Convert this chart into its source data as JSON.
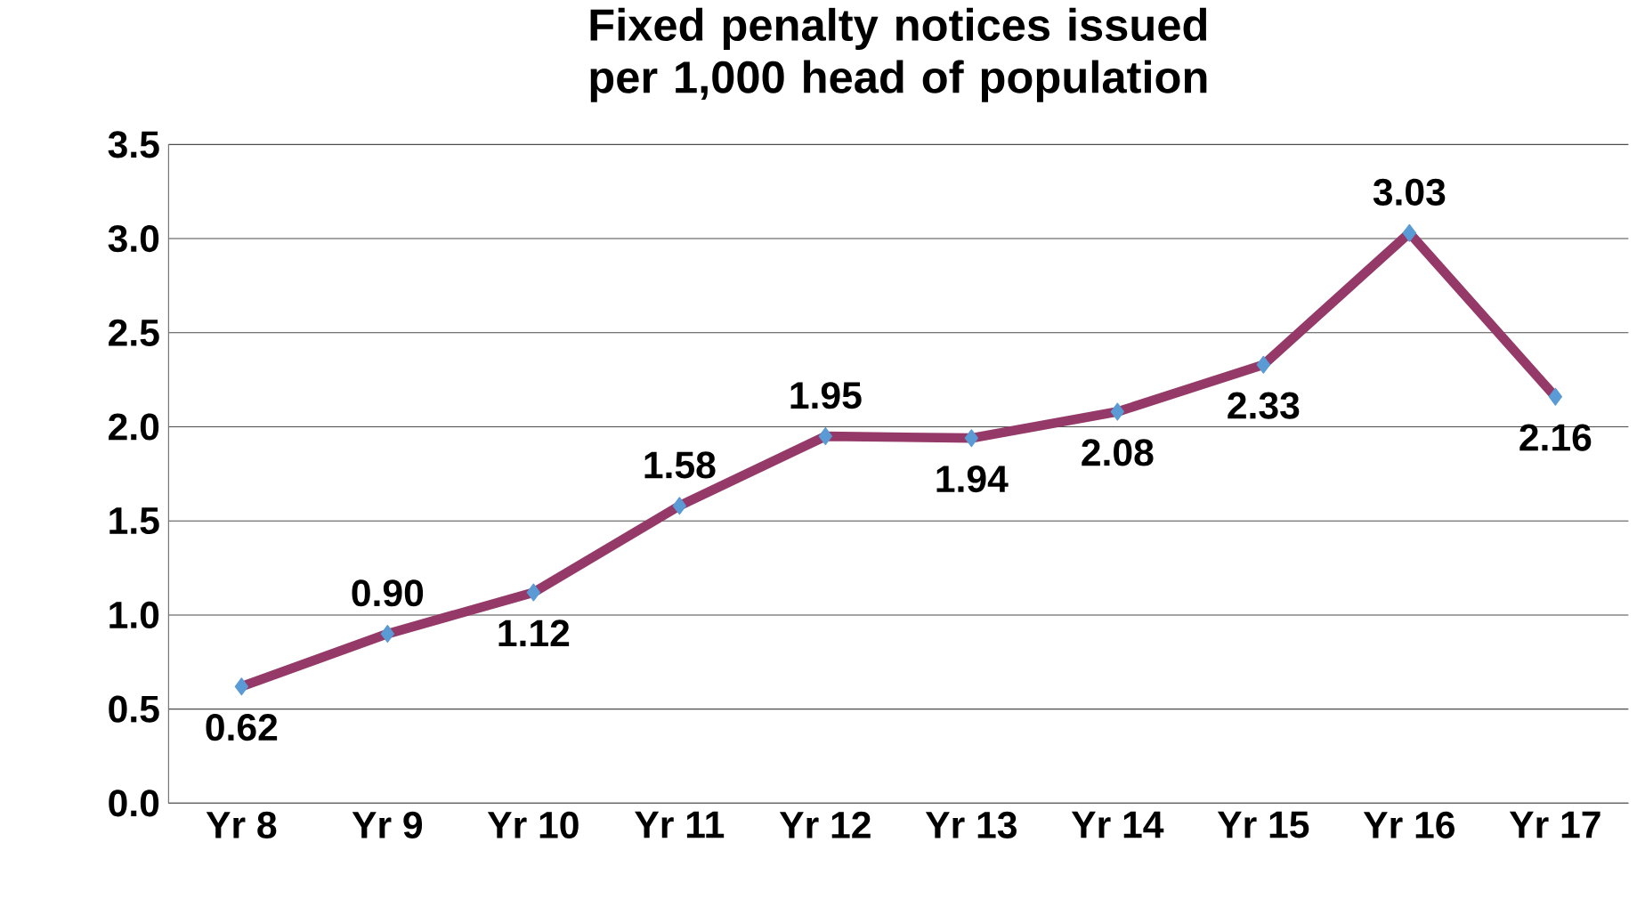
{
  "chart_data": {
    "type": "line",
    "title": "Fixed penalty notices issued per 1,000 head of population",
    "categories": [
      "Yr 8",
      "Yr 9",
      "Yr 10",
      "Yr 11",
      "Yr 12",
      "Yr 13",
      "Yr 14",
      "Yr 15",
      "Yr 16",
      "Yr 17"
    ],
    "values": [
      0.62,
      0.9,
      1.12,
      1.58,
      1.95,
      1.94,
      2.08,
      2.33,
      3.03,
      2.16
    ],
    "value_labels": [
      "0.62",
      "0.90",
      "1.12",
      "1.58",
      "1.95",
      "1.94",
      "2.08",
      "2.33",
      "3.03",
      "2.16"
    ],
    "color": "#953a68",
    "marker": "diamond",
    "grid": "y",
    "ylim": [
      0,
      3.5
    ],
    "yticks": [
      {
        "value": 0,
        "label": "0.0"
      },
      {
        "value": 0.5,
        "label": "0.5"
      },
      {
        "value": 1,
        "label": "1.0"
      },
      {
        "value": 1.5,
        "label": "1.5"
      },
      {
        "value": 2,
        "label": "2.0"
      },
      {
        "value": 2.5,
        "label": "2.5"
      },
      {
        "value": 3,
        "label": "3.0"
      },
      {
        "value": 3.5,
        "label": "3.5"
      }
    ]
  }
}
